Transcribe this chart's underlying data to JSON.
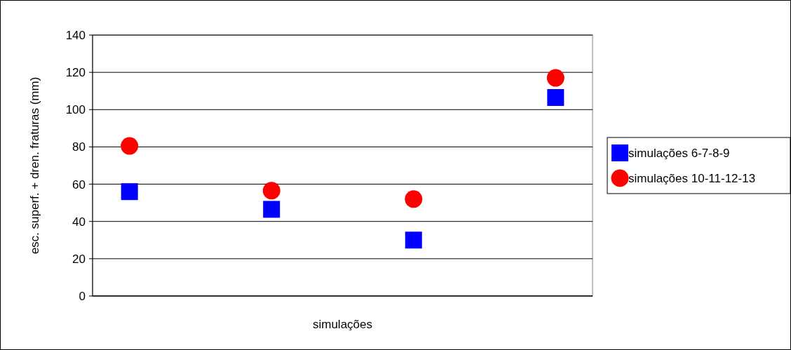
{
  "chart_data": {
    "type": "scatter",
    "xlabel": "simulações",
    "ylabel": "esc. superf. + dren. fraturas (mm)",
    "categories": [
      null,
      null,
      null,
      null
    ],
    "ylim": [
      0,
      140
    ],
    "yticks": [
      0,
      20,
      40,
      60,
      80,
      100,
      120,
      140
    ],
    "grid": "y",
    "legend": "right",
    "series": [
      {
        "name": "simulações 6-7-8-9",
        "color": "#0000ff",
        "marker": "square",
        "values": [
          56,
          46.5,
          30,
          106.5
        ]
      },
      {
        "name": "simulações 10-11-12-13",
        "color": "#ff0000",
        "marker": "circle",
        "values": [
          80.5,
          56.5,
          52,
          117
        ]
      }
    ]
  }
}
